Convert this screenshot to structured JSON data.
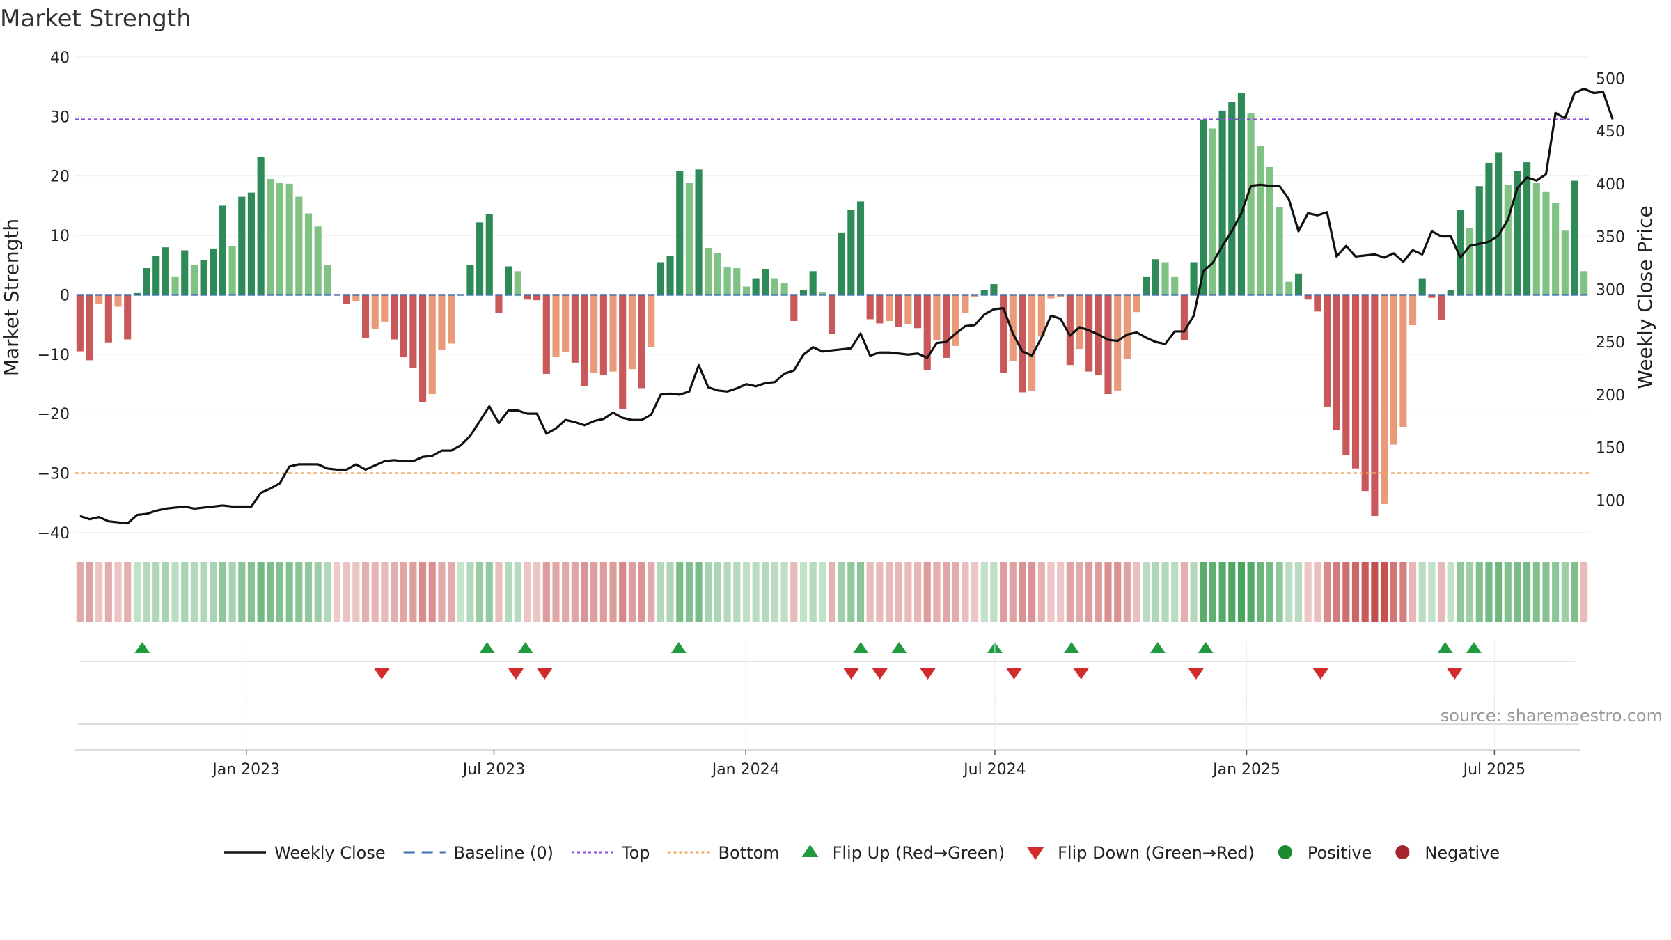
{
  "chart_data": {
    "type": "bar",
    "title": "Market Strength",
    "ylabel": "Market Strength",
    "y2label": "Weekly Close Price",
    "ylim": [
      -42,
      40
    ],
    "y2lim": [
      58,
      520
    ],
    "yticks": [
      "40",
      "30",
      "20",
      "10",
      "0",
      "−10",
      "−20",
      "−30",
      "−40"
    ],
    "yticks_values": [
      40,
      30,
      20,
      10,
      0,
      -10,
      -20,
      -30,
      -40
    ],
    "y2ticks": [
      "500",
      "450",
      "400",
      "350",
      "300",
      "250",
      "200",
      "150",
      "100"
    ],
    "y2ticks_values": [
      500,
      450,
      400,
      350,
      300,
      250,
      200,
      150,
      100
    ],
    "top_level": 29.5,
    "bottom_level": -30,
    "x_range": [
      "2022-08-29",
      "2025-09-08"
    ],
    "xticks": [
      {
        "label": "Jan 2023",
        "date": "2023-01-01"
      },
      {
        "label": "Jul 2023",
        "date": "2023-07-01"
      },
      {
        "label": "Jan 2024",
        "date": "2024-01-01"
      },
      {
        "label": "Jul 2024",
        "date": "2024-07-01"
      },
      {
        "label": "Jan 2025",
        "date": "2025-01-01"
      },
      {
        "label": "Jul 2025",
        "date": "2025-07-01"
      }
    ],
    "start_date": "2022-08-29",
    "strength": [
      -9.5,
      -11,
      -1.5,
      -8,
      -2,
      -7.5,
      0.3,
      4.5,
      6.5,
      8,
      3,
      7.5,
      5,
      5.8,
      7.8,
      15,
      8.2,
      16.5,
      17.2,
      23.2,
      19.5,
      18.8,
      18.7,
      16.5,
      13.7,
      11.5,
      5,
      0,
      -1.5,
      -1,
      -7.3,
      -5.8,
      -4.5,
      -7.5,
      -10.5,
      -12.3,
      -18.1,
      -16.7,
      -9.3,
      -8.2,
      0,
      5,
      12.2,
      13.6,
      -3.1,
      4.8,
      4,
      -0.8,
      -0.9,
      -13.3,
      -10.4,
      -9.6,
      -11.4,
      -15.4,
      -13.1,
      -13.5,
      -12.9,
      -19.2,
      -12.5,
      -15.7,
      -8.8,
      5.5,
      6.6,
      20.8,
      18.8,
      21.1,
      7.9,
      7,
      4.7,
      4.5,
      1.4,
      2.8,
      4.3,
      2.8,
      2,
      -4.4,
      0.8,
      4,
      0.4,
      -6.6,
      10.5,
      14.3,
      15.7,
      -4.1,
      -4.8,
      -4.4,
      -5.4,
      -4.9,
      -5.6,
      -12.6,
      -7.6,
      -10.6,
      -8.6,
      -3.1,
      -0.4,
      0.8,
      1.8,
      -13.1,
      -11.1,
      -16.4,
      -16.2,
      -7,
      -0.6,
      -0.4,
      -11.8,
      -9.1,
      -12.9,
      -13.5,
      -16.7,
      -16.1,
      -10.8,
      -2.9,
      3,
      6,
      5.5,
      3,
      -7.6,
      5.5,
      29.5,
      28,
      31,
      32.5,
      34,
      30.5,
      25,
      21.5,
      14.7,
      2.2,
      3.6,
      -0.8,
      -2.8,
      -18.8,
      -22.8,
      -27,
      -29.2,
      -33,
      -37.2,
      -35.2,
      -25.2,
      -22.2,
      -5.1,
      2.8,
      -0.5,
      -4.2,
      0.8,
      14.3,
      11.2,
      18.3,
      22.2,
      23.9,
      18.5,
      20.8,
      22.3,
      18.8,
      17.3,
      15.4,
      10.8,
      19.2,
      4
    ],
    "close": [
      85,
      82,
      84,
      80,
      79,
      78,
      86,
      87,
      90,
      92,
      93,
      94,
      92,
      93,
      94,
      95,
      94,
      94,
      94,
      107,
      111,
      116,
      132,
      134,
      134,
      134,
      130,
      129,
      129,
      134,
      129,
      133,
      137,
      138,
      137,
      137,
      141,
      142,
      147,
      147,
      152,
      161,
      175,
      189,
      173,
      185,
      185,
      182,
      182,
      163,
      168,
      176,
      174,
      171,
      175,
      177,
      183,
      178,
      176,
      176,
      181,
      200,
      201,
      200,
      203,
      228,
      207,
      204,
      203,
      206,
      210,
      208,
      211,
      212,
      220,
      223,
      238,
      245,
      241,
      242,
      243,
      244,
      258,
      237,
      240,
      240,
      239,
      238,
      239,
      235,
      249,
      250,
      258,
      265,
      266,
      276,
      281,
      282,
      258,
      241,
      237,
      254,
      275,
      272,
      256,
      264,
      261,
      257,
      252,
      251,
      257,
      259,
      254,
      250,
      248,
      260,
      260,
      275,
      317,
      325,
      341,
      355,
      372,
      398,
      399,
      398,
      398,
      385,
      355,
      372,
      370,
      373,
      331,
      341,
      331,
      332,
      333,
      330,
      334,
      326,
      337,
      333,
      355,
      350,
      350,
      330,
      341,
      343,
      345,
      351,
      366,
      396,
      406,
      403,
      409,
      467,
      462,
      486,
      490,
      486,
      487,
      461
    ],
    "palette_states": [
      1,
      1,
      1,
      1,
      1,
      1,
      0,
      0,
      0,
      0,
      0,
      0,
      0,
      0,
      0,
      0,
      0,
      0,
      0,
      0,
      0,
      0,
      0,
      0,
      0,
      0,
      0,
      1,
      1,
      1,
      1,
      1,
      1,
      1,
      1,
      1,
      1,
      1,
      1,
      1,
      0,
      0,
      0,
      0,
      1,
      0,
      0,
      1,
      1,
      1,
      1,
      1,
      1,
      1,
      1,
      1,
      1,
      1,
      1,
      1,
      1,
      0,
      0,
      0,
      0,
      0,
      0,
      0,
      0,
      0,
      0,
      0,
      0,
      0,
      0,
      1,
      0,
      0,
      0,
      1,
      0,
      0,
      0,
      1,
      1,
      1,
      1,
      1,
      1,
      1,
      1,
      1,
      1,
      1,
      1,
      0,
      0,
      1,
      1,
      1,
      1,
      1,
      1,
      1,
      1,
      1,
      1,
      1,
      1,
      1,
      1,
      1,
      0,
      0,
      0,
      0,
      1,
      0,
      0,
      0,
      0,
      0,
      0,
      0,
      0,
      0,
      0,
      0,
      0,
      1,
      1,
      1,
      1,
      1,
      1,
      1,
      1,
      1,
      1,
      1,
      1,
      0,
      0,
      1,
      0,
      0,
      0,
      0,
      0,
      0,
      0,
      0,
      0,
      0,
      0,
      0,
      0,
      0
    ],
    "flip_up_dates": [
      "2022-10-17",
      "2023-06-26",
      "2023-07-24",
      "2023-11-13",
      "2024-03-25",
      "2024-04-22",
      "2024-07-01",
      "2024-08-26",
      "2024-10-28",
      "2024-12-02",
      "2025-05-26",
      "2025-06-16"
    ],
    "flip_down_dates": [
      "2023-04-10",
      "2023-07-17",
      "2023-08-07",
      "2024-03-18",
      "2024-04-08",
      "2024-05-13",
      "2024-07-15",
      "2024-09-02",
      "2024-11-25",
      "2025-02-24",
      "2025-06-02"
    ],
    "legend": [
      {
        "label": "Weekly Close",
        "kind": "line",
        "color": "#111111"
      },
      {
        "label": "Baseline (0)",
        "kind": "dash",
        "color": "#3a6fb0"
      },
      {
        "label": "Top",
        "kind": "dot",
        "color": "#8a4fe0"
      },
      {
        "label": "Bottom",
        "kind": "dot",
        "color": "#f0a25a"
      },
      {
        "label": "Flip Up (Red→Green)",
        "kind": "tri-up",
        "color": "#1f9a3f"
      },
      {
        "label": "Flip Down (Green→Red)",
        "kind": "tri-down",
        "color": "#d12b2b"
      },
      {
        "label": "Positive",
        "kind": "circle",
        "color": "#1e8a2e"
      },
      {
        "label": "Negative",
        "kind": "circle",
        "color": "#a4262c"
      }
    ],
    "colors": {
      "pos_strong": "#2e8b57",
      "pos_weak": "#7fc283",
      "neg_strong": "#c9585a",
      "neg_weak": "#e89a7a",
      "top_line": "#8a4fe0",
      "bottom_line": "#f0a25a",
      "baseline": "#3a6fb0",
      "close_line": "#111111"
    },
    "source": "source: sharemaestro.com"
  }
}
